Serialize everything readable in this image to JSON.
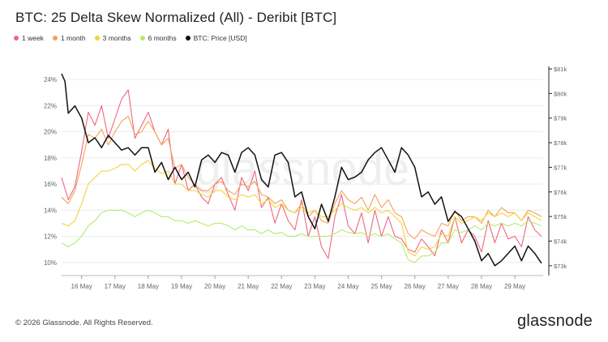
{
  "page": {
    "title": "BTC: 25 Delta Skew Normalized (All) - Deribit [BTC]",
    "copyright": "© 2026 Glassnode. All Rights Reserved.",
    "brand": "glassnode",
    "watermark": "glassnode"
  },
  "legend": [
    {
      "label": "1 week",
      "color": "#f0667e"
    },
    {
      "label": "1 month",
      "color": "#f5a25a"
    },
    {
      "label": "3 months",
      "color": "#f2d43a"
    },
    {
      "label": "6 months",
      "color": "#b5eb6b"
    },
    {
      "label": "BTC: Price [USD]",
      "color": "#111111"
    }
  ],
  "chart_data": {
    "type": "line",
    "x_ticks": [
      "16 May",
      "17 May",
      "18 May",
      "19 May",
      "20 May",
      "21 May",
      "22 May",
      "23 May",
      "24 May",
      "25 May",
      "26 May",
      "27 May",
      "28 May",
      "29 May"
    ],
    "x_range_days": [
      15.4,
      29.85
    ],
    "y_left": {
      "ticks": [
        "10%",
        "12%",
        "14%",
        "16%",
        "18%",
        "20%",
        "22%",
        "24%"
      ],
      "range": [
        9,
        25
      ],
      "unit": "%"
    },
    "y_right": {
      "ticks": [
        "$73k",
        "$74k",
        "$75k",
        "$76k",
        "$77k",
        "$78k",
        "$79k",
        "$80k",
        "$81k"
      ],
      "range": [
        72.6,
        81.1
      ],
      "unit": "$k"
    },
    "grid": true,
    "legend_position": "top-left",
    "series": [
      {
        "name": "1 week",
        "color": "#f0667e",
        "axis": "left",
        "x": [
          15.4,
          15.6,
          15.8,
          16.0,
          16.2,
          16.4,
          16.6,
          16.8,
          17.0,
          17.2,
          17.4,
          17.6,
          17.8,
          18.0,
          18.2,
          18.4,
          18.6,
          18.8,
          19.0,
          19.2,
          19.4,
          19.6,
          19.8,
          20.0,
          20.2,
          20.4,
          20.6,
          20.8,
          21.0,
          21.2,
          21.4,
          21.6,
          21.8,
          22.0,
          22.2,
          22.4,
          22.6,
          22.8,
          23.0,
          23.2,
          23.4,
          23.6,
          23.8,
          24.0,
          24.2,
          24.4,
          24.6,
          24.8,
          25.0,
          25.2,
          25.4,
          25.6,
          25.8,
          26.0,
          26.2,
          26.4,
          26.6,
          26.8,
          27.0,
          27.2,
          27.4,
          27.6,
          27.8,
          28.0,
          28.2,
          28.4,
          28.6,
          28.8,
          29.0,
          29.2,
          29.4,
          29.6,
          29.8
        ],
        "values": [
          16.5,
          14.8,
          15.8,
          18.5,
          21.5,
          20.5,
          22.0,
          19.5,
          21.0,
          22.5,
          23.2,
          19.5,
          20.5,
          21.5,
          20.0,
          19.0,
          20.2,
          16.0,
          17.5,
          15.5,
          16.0,
          15.0,
          14.5,
          16.0,
          16.5,
          15.2,
          14.0,
          16.5,
          15.5,
          17.0,
          14.2,
          15.0,
          13.0,
          14.5,
          13.2,
          12.5,
          14.8,
          12.0,
          13.5,
          11.2,
          10.3,
          13.5,
          15.2,
          12.8,
          12.2,
          13.8,
          11.5,
          14.0,
          12.0,
          13.5,
          12.0,
          11.8,
          11.0,
          10.8,
          11.8,
          11.2,
          10.5,
          12.5,
          11.5,
          13.5,
          11.5,
          12.5,
          12.0,
          10.8,
          13.2,
          11.5,
          13.0,
          11.8,
          12.0,
          11.2,
          13.5,
          12.5,
          12.0
        ]
      },
      {
        "name": "1 month",
        "color": "#f5a25a",
        "axis": "left",
        "x": [
          15.4,
          15.6,
          15.8,
          16.0,
          16.2,
          16.4,
          16.6,
          16.8,
          17.0,
          17.2,
          17.4,
          17.6,
          17.8,
          18.0,
          18.2,
          18.4,
          18.6,
          18.8,
          19.0,
          19.2,
          19.4,
          19.6,
          19.8,
          20.0,
          20.2,
          20.4,
          20.6,
          20.8,
          21.0,
          21.2,
          21.4,
          21.6,
          21.8,
          22.0,
          22.2,
          22.4,
          22.6,
          22.8,
          23.0,
          23.2,
          23.4,
          23.6,
          23.8,
          24.0,
          24.2,
          24.4,
          24.6,
          24.8,
          25.0,
          25.2,
          25.4,
          25.6,
          25.8,
          26.0,
          26.2,
          26.4,
          26.6,
          26.8,
          27.0,
          27.2,
          27.4,
          27.6,
          27.8,
          28.0,
          28.2,
          28.4,
          28.6,
          28.8,
          29.0,
          29.2,
          29.4,
          29.6,
          29.8
        ],
        "values": [
          15.0,
          14.5,
          15.5,
          17.5,
          19.8,
          19.5,
          20.2,
          19.0,
          20.0,
          20.8,
          21.2,
          19.8,
          20.0,
          20.8,
          20.0,
          19.0,
          19.5,
          17.2,
          17.5,
          16.5,
          16.0,
          15.5,
          15.5,
          16.0,
          16.2,
          15.5,
          15.2,
          16.0,
          15.8,
          16.2,
          15.2,
          15.0,
          14.5,
          14.8,
          14.0,
          13.8,
          14.5,
          13.5,
          14.0,
          13.2,
          13.0,
          14.5,
          15.5,
          14.8,
          14.5,
          15.0,
          14.0,
          15.2,
          14.2,
          14.8,
          13.8,
          13.5,
          12.2,
          11.8,
          12.5,
          12.2,
          12.0,
          13.0,
          12.8,
          14.0,
          13.2,
          13.5,
          13.5,
          13.0,
          14.0,
          13.5,
          14.2,
          13.8,
          13.8,
          13.2,
          14.0,
          13.8,
          13.5
        ]
      },
      {
        "name": "3 months",
        "color": "#f2d43a",
        "axis": "left",
        "x": [
          15.4,
          15.6,
          15.8,
          16.0,
          16.2,
          16.4,
          16.6,
          16.8,
          17.0,
          17.2,
          17.4,
          17.6,
          17.8,
          18.0,
          18.2,
          18.4,
          18.6,
          18.8,
          19.0,
          19.2,
          19.4,
          19.6,
          19.8,
          20.0,
          20.2,
          20.4,
          20.6,
          20.8,
          21.0,
          21.2,
          21.4,
          21.6,
          21.8,
          22.0,
          22.2,
          22.4,
          22.6,
          22.8,
          23.0,
          23.2,
          23.4,
          23.6,
          23.8,
          24.0,
          24.2,
          24.4,
          24.6,
          24.8,
          25.0,
          25.2,
          25.4,
          25.6,
          25.8,
          26.0,
          26.2,
          26.4,
          26.6,
          26.8,
          27.0,
          27.2,
          27.4,
          27.6,
          27.8,
          28.0,
          28.2,
          28.4,
          28.6,
          28.8,
          29.0,
          29.2,
          29.4,
          29.6,
          29.8
        ],
        "values": [
          13.0,
          12.8,
          13.2,
          14.5,
          16.0,
          16.5,
          17.0,
          17.0,
          17.2,
          17.5,
          17.5,
          17.0,
          17.5,
          17.8,
          17.2,
          16.8,
          17.0,
          16.0,
          16.0,
          15.5,
          15.5,
          15.2,
          15.0,
          15.5,
          15.5,
          15.0,
          14.8,
          15.2,
          15.0,
          15.2,
          14.5,
          14.8,
          14.2,
          14.5,
          14.0,
          13.8,
          14.2,
          13.8,
          14.0,
          13.5,
          13.5,
          14.0,
          14.5,
          14.2,
          14.0,
          14.2,
          13.8,
          14.2,
          13.8,
          14.0,
          13.5,
          13.0,
          10.8,
          10.5,
          11.2,
          11.0,
          11.2,
          12.2,
          12.0,
          13.5,
          13.0,
          13.2,
          13.5,
          13.2,
          13.8,
          13.5,
          13.8,
          13.5,
          13.8,
          13.2,
          13.8,
          13.5,
          13.2
        ]
      },
      {
        "name": "6 months",
        "color": "#b5eb6b",
        "axis": "left",
        "x": [
          15.4,
          15.6,
          15.8,
          16.0,
          16.2,
          16.4,
          16.6,
          16.8,
          17.0,
          17.2,
          17.4,
          17.6,
          17.8,
          18.0,
          18.2,
          18.4,
          18.6,
          18.8,
          19.0,
          19.2,
          19.4,
          19.6,
          19.8,
          20.0,
          20.2,
          20.4,
          20.6,
          20.8,
          21.0,
          21.2,
          21.4,
          21.6,
          21.8,
          22.0,
          22.2,
          22.4,
          22.6,
          22.8,
          23.0,
          23.2,
          23.4,
          23.6,
          23.8,
          24.0,
          24.2,
          24.4,
          24.6,
          24.8,
          25.0,
          25.2,
          25.4,
          25.6,
          25.8,
          26.0,
          26.2,
          26.4,
          26.6,
          26.8,
          27.0,
          27.2,
          27.4,
          27.6,
          27.8,
          28.0,
          28.2,
          28.4,
          28.6,
          28.8,
          29.0,
          29.2,
          29.4,
          29.6,
          29.8
        ],
        "values": [
          11.5,
          11.2,
          11.5,
          12.0,
          12.8,
          13.2,
          13.8,
          14.0,
          14.0,
          14.0,
          13.8,
          13.5,
          13.8,
          14.0,
          13.8,
          13.5,
          13.5,
          13.2,
          13.2,
          13.0,
          13.2,
          13.0,
          12.8,
          13.0,
          13.0,
          12.8,
          12.5,
          12.8,
          12.5,
          12.5,
          12.2,
          12.5,
          12.2,
          12.3,
          12.0,
          12.0,
          12.2,
          12.0,
          12.0,
          12.0,
          12.0,
          12.2,
          12.5,
          12.3,
          12.2,
          12.3,
          12.0,
          12.2,
          12.0,
          12.2,
          11.8,
          11.5,
          10.2,
          10.0,
          10.5,
          10.5,
          10.8,
          11.5,
          11.5,
          12.5,
          12.3,
          12.5,
          12.8,
          12.5,
          13.0,
          12.8,
          13.0,
          12.8,
          13.0,
          12.8,
          13.2,
          13.0,
          12.8
        ]
      },
      {
        "name": "BTC: Price [USD]",
        "color": "#111111",
        "axis": "right",
        "x": [
          15.4,
          15.5,
          15.6,
          15.8,
          16.0,
          16.2,
          16.4,
          16.6,
          16.8,
          17.0,
          17.2,
          17.4,
          17.6,
          17.8,
          18.0,
          18.2,
          18.4,
          18.6,
          18.8,
          19.0,
          19.2,
          19.4,
          19.6,
          19.8,
          20.0,
          20.2,
          20.4,
          20.6,
          20.8,
          21.0,
          21.2,
          21.4,
          21.6,
          21.8,
          22.0,
          22.2,
          22.4,
          22.6,
          22.8,
          23.0,
          23.2,
          23.4,
          23.6,
          23.8,
          24.0,
          24.2,
          24.4,
          24.6,
          24.8,
          25.0,
          25.2,
          25.4,
          25.6,
          25.8,
          26.0,
          26.2,
          26.4,
          26.6,
          26.8,
          27.0,
          27.2,
          27.4,
          27.6,
          27.8,
          28.0,
          28.2,
          28.4,
          28.6,
          28.8,
          29.0,
          29.2,
          29.4,
          29.6,
          29.8
        ],
        "values": [
          80.8,
          80.5,
          79.2,
          79.5,
          79.0,
          78.0,
          78.2,
          77.8,
          78.3,
          78.0,
          77.7,
          77.8,
          77.5,
          77.8,
          77.8,
          76.8,
          77.2,
          76.5,
          77.0,
          76.5,
          76.8,
          76.2,
          77.3,
          77.5,
          77.2,
          77.6,
          77.5,
          76.8,
          77.6,
          77.8,
          77.5,
          76.5,
          76.2,
          77.5,
          77.6,
          77.2,
          75.8,
          76.0,
          75.0,
          74.5,
          75.5,
          74.8,
          75.8,
          77.0,
          76.5,
          76.6,
          76.8,
          77.3,
          77.6,
          77.8,
          77.3,
          76.8,
          77.8,
          77.5,
          77.0,
          75.8,
          76.0,
          75.5,
          75.8,
          74.8,
          75.2,
          75.0,
          74.5,
          74.0,
          73.2,
          73.5,
          73.0,
          73.2,
          73.5,
          73.8,
          73.2,
          73.8,
          73.5,
          73.1
        ]
      }
    ]
  }
}
